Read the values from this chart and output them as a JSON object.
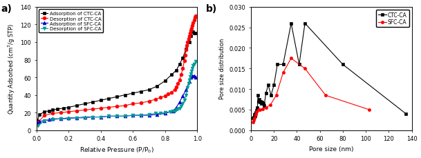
{
  "panel_a": {
    "title": "a)",
    "xlabel": "Relative Pressure (P/P$_0$)",
    "ylabel": "Quantity Adsorbed (cm$^3$/g STP)",
    "ylim": [
      0,
      140
    ],
    "xlim": [
      0.0,
      1.0
    ],
    "xticks": [
      0.0,
      0.2,
      0.4,
      0.6,
      0.8,
      1.0
    ],
    "yticks": [
      0,
      20,
      40,
      60,
      80,
      100,
      120,
      140
    ],
    "series": [
      {
        "label": "Adsorption of CTC-CA",
        "color": "#000000",
        "marker": "s",
        "markersize": 3.5,
        "linewidth": 0.8,
        "x": [
          0.005,
          0.02,
          0.05,
          0.08,
          0.1,
          0.13,
          0.17,
          0.2,
          0.25,
          0.3,
          0.35,
          0.4,
          0.45,
          0.5,
          0.55,
          0.6,
          0.65,
          0.7,
          0.75,
          0.8,
          0.84,
          0.87,
          0.89,
          0.91,
          0.93,
          0.95,
          0.96,
          0.97,
          0.975,
          0.98,
          0.99
        ],
        "y": [
          11,
          18,
          21,
          22,
          23,
          24,
          25,
          26,
          28,
          30,
          32,
          34,
          36,
          38,
          40,
          42,
          44,
          46,
          50,
          56,
          63,
          68,
          75,
          82,
          92,
          100,
          107,
          112,
          112,
          110,
          110
        ]
      },
      {
        "label": "Desorption of CTC-CA",
        "color": "#ff0000",
        "marker": "o",
        "markersize": 3.5,
        "linewidth": 0.8,
        "x": [
          0.99,
          0.985,
          0.98,
          0.975,
          0.97,
          0.965,
          0.96,
          0.955,
          0.95,
          0.945,
          0.94,
          0.935,
          0.93,
          0.925,
          0.92,
          0.91,
          0.9,
          0.89,
          0.88,
          0.87,
          0.86,
          0.84,
          0.82,
          0.8,
          0.77,
          0.74,
          0.7,
          0.65,
          0.6,
          0.55,
          0.5,
          0.45,
          0.4,
          0.35,
          0.3,
          0.25,
          0.2,
          0.15,
          0.1,
          0.05,
          0.01
        ],
        "y": [
          130,
          128,
          125,
          122,
          119,
          116,
          113,
          110,
          107,
          104,
          100,
          96,
          91,
          85,
          79,
          70,
          63,
          57,
          53,
          49,
          46,
          43,
          41,
          39,
          37,
          35,
          33,
          31,
          30,
          28,
          27,
          26,
          25,
          24,
          23,
          22,
          21,
          20,
          19,
          17,
          9
        ]
      },
      {
        "label": "Adsorption of SFC-CA",
        "color": "#0000cc",
        "marker": "^",
        "markersize": 3.5,
        "linewidth": 0.8,
        "x": [
          0.005,
          0.02,
          0.05,
          0.08,
          0.1,
          0.15,
          0.2,
          0.25,
          0.3,
          0.35,
          0.4,
          0.45,
          0.5,
          0.55,
          0.6,
          0.65,
          0.7,
          0.75,
          0.8,
          0.85,
          0.87,
          0.89,
          0.91,
          0.93,
          0.95,
          0.96,
          0.97,
          0.98,
          0.99
        ],
        "y": [
          8,
          10,
          11,
          12,
          13,
          13,
          14,
          14,
          15,
          15,
          15,
          16,
          16,
          16,
          17,
          17,
          17,
          18,
          19,
          22,
          26,
          32,
          39,
          46,
          55,
          60,
          62,
          62,
          60
        ]
      },
      {
        "label": "Desorption of SFC-CA",
        "color": "#009999",
        "marker": "v",
        "markersize": 3.5,
        "linewidth": 0.8,
        "x": [
          0.99,
          0.98,
          0.975,
          0.97,
          0.965,
          0.96,
          0.955,
          0.95,
          0.945,
          0.94,
          0.93,
          0.92,
          0.91,
          0.9,
          0.89,
          0.88,
          0.87,
          0.86,
          0.85,
          0.83,
          0.8,
          0.77,
          0.74,
          0.7,
          0.65,
          0.6,
          0.55,
          0.5,
          0.45,
          0.4,
          0.35,
          0.3,
          0.25,
          0.2,
          0.15,
          0.1,
          0.05,
          0.01
        ],
        "y": [
          78,
          75,
          73,
          70,
          67,
          64,
          61,
          57,
          53,
          48,
          40,
          34,
          30,
          27,
          25,
          24,
          23,
          22,
          22,
          21,
          20,
          19,
          19,
          18,
          17,
          17,
          16,
          16,
          16,
          15,
          15,
          14,
          14,
          13,
          13,
          12,
          11,
          5
        ]
      }
    ]
  },
  "panel_b": {
    "title": "b)",
    "xlabel": "Pore size (nm)",
    "ylabel": "Pore size distribution",
    "ylim": [
      0.0,
      0.03
    ],
    "xlim": [
      0,
      140
    ],
    "xticks": [
      0,
      20,
      40,
      60,
      80,
      100,
      120,
      140
    ],
    "yticks": [
      0.0,
      0.005,
      0.01,
      0.015,
      0.02,
      0.025,
      0.03
    ],
    "series": [
      {
        "label": "CTC-CA",
        "color": "#000000",
        "marker": "s",
        "markersize": 3.0,
        "linewidth": 0.8,
        "x": [
          1.8,
          2.2,
          2.6,
          3.0,
          3.4,
          3.8,
          4.2,
          4.6,
          5.1,
          5.6,
          6.1,
          6.7,
          7.3,
          7.9,
          8.5,
          9.2,
          9.9,
          10.6,
          11.5,
          13.0,
          15.0,
          17.5,
          20.0,
          23.0,
          28.0,
          35.0,
          42.0,
          47.0,
          80.0,
          135.0
        ],
        "y": [
          0.003,
          0.003,
          0.0032,
          0.0038,
          0.0035,
          0.004,
          0.0043,
          0.0048,
          0.0052,
          0.0055,
          0.0085,
          0.007,
          0.0075,
          0.0068,
          0.007,
          0.0065,
          0.0068,
          0.0065,
          0.006,
          0.009,
          0.011,
          0.0085,
          0.011,
          0.016,
          0.016,
          0.026,
          0.016,
          0.026,
          0.016,
          0.004
        ]
      },
      {
        "label": "SFC-CA",
        "color": "#ff0000",
        "marker": "o",
        "markersize": 3.0,
        "linewidth": 0.8,
        "x": [
          1.8,
          2.5,
          3.2,
          4.0,
          5.0,
          6.5,
          8.0,
          10.0,
          13.0,
          17.0,
          22.0,
          28.0,
          35.0,
          47.0,
          65.0,
          103.0
        ],
        "y": [
          0.002,
          0.0025,
          0.003,
          0.0038,
          0.0045,
          0.005,
          0.005,
          0.0052,
          0.0055,
          0.0062,
          0.0085,
          0.014,
          0.0175,
          0.015,
          0.0085,
          0.005
        ]
      }
    ]
  }
}
